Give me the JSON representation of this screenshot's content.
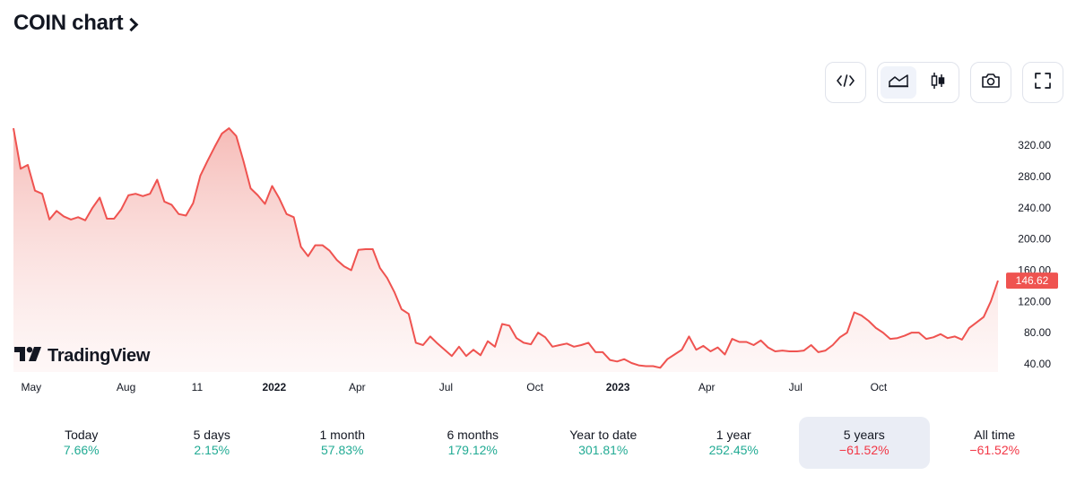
{
  "header": {
    "title": "COIN chart"
  },
  "toolbar": {
    "embed_icon": "code-icon",
    "area_icon": "area-chart-icon",
    "candle_icon": "candlestick-icon",
    "snapshot_icon": "camera-icon",
    "fullscreen_icon": "fullscreen-icon"
  },
  "brand": {
    "logo_text": "TradingView"
  },
  "colors": {
    "line": "#ef5350",
    "fill_top": "#f7c5c2",
    "positive": "#22ab94",
    "negative": "#f23645",
    "price_tag": "#ef5350"
  },
  "chart_data": {
    "type": "area",
    "symbol": "COIN",
    "x_tick_labels": [
      "May",
      "Aug",
      "11",
      "2022",
      "Apr",
      "Jul",
      "Oct",
      "2023",
      "Apr",
      "Jul",
      "Oct"
    ],
    "y_ticks": [
      "320.00",
      "280.00",
      "240.00",
      "200.00",
      "160.00",
      "120.00",
      "80.00",
      "40.00"
    ],
    "ylim": [
      33,
      357
    ],
    "last_price": "146.62",
    "series": [
      {
        "values": [
          342,
          290,
          295,
          262,
          258,
          225,
          236,
          229,
          225,
          228,
          224,
          240,
          253,
          226,
          226,
          238,
          256,
          258,
          255,
          258,
          276,
          248,
          244,
          232,
          230,
          246,
          281,
          300,
          318,
          335,
          342,
          332,
          300,
          265,
          256,
          245,
          268,
          252,
          232,
          228,
          190,
          178,
          192,
          192,
          185,
          173,
          165,
          160,
          186,
          187,
          187,
          163,
          150,
          132,
          110,
          104,
          67,
          64,
          75,
          66,
          58,
          50,
          62,
          50,
          58,
          51,
          69,
          62,
          91,
          89,
          73,
          67,
          65,
          80,
          74,
          62,
          64,
          66,
          62,
          64,
          67,
          55,
          55,
          45,
          43,
          46,
          41,
          38,
          37,
          37,
          35,
          46,
          52,
          58,
          75,
          58,
          63,
          56,
          61,
          52,
          72,
          68,
          68,
          64,
          70,
          61,
          56,
          57,
          56,
          56,
          57,
          64,
          55,
          57,
          64,
          74,
          80,
          106,
          102,
          95,
          86,
          80,
          72,
          73,
          76,
          80,
          80,
          72,
          74,
          78,
          73,
          75,
          71,
          86,
          93,
          100,
          120,
          146.62
        ]
      }
    ]
  },
  "periods": [
    {
      "label": "Today",
      "value": "7.66%",
      "sign": "pos"
    },
    {
      "label": "5 days",
      "value": "2.15%",
      "sign": "pos"
    },
    {
      "label": "1 month",
      "value": "57.83%",
      "sign": "pos"
    },
    {
      "label": "6 months",
      "value": "179.12%",
      "sign": "pos"
    },
    {
      "label": "Year to date",
      "value": "301.81%",
      "sign": "pos"
    },
    {
      "label": "1 year",
      "value": "252.45%",
      "sign": "pos"
    },
    {
      "label": "5 years",
      "value": "−61.52%",
      "sign": "neg",
      "active": true
    },
    {
      "label": "All time",
      "value": "−61.52%",
      "sign": "neg"
    }
  ]
}
